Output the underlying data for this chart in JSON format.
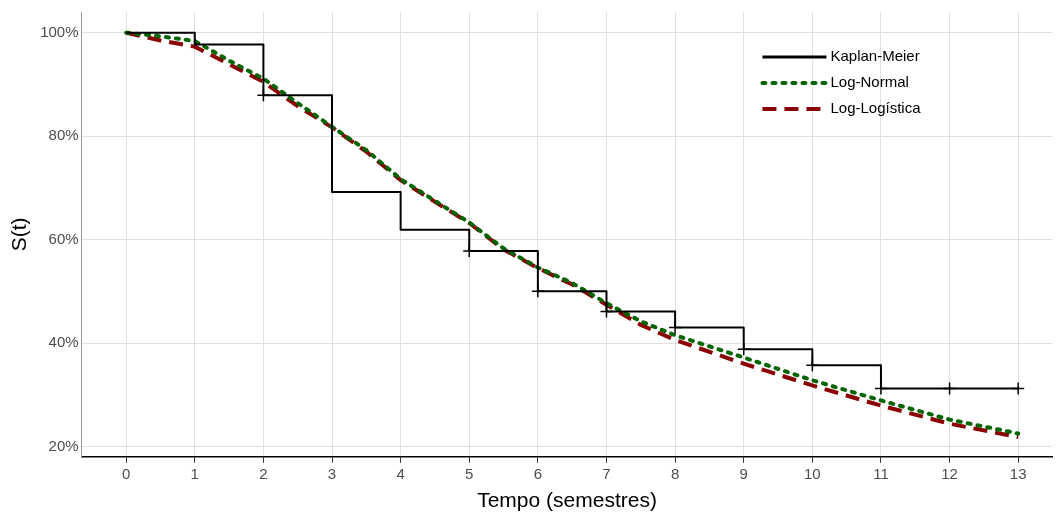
{
  "chart_data": {
    "type": "line",
    "xlabel": "Tempo (semestres)",
    "ylabel": "S(t)",
    "xlim": [
      -0.65,
      13.5
    ],
    "xticks": [
      0,
      1,
      2,
      3,
      4,
      5,
      6,
      7,
      8,
      9,
      10,
      11,
      12,
      13
    ],
    "ylim": [
      18,
      104
    ],
    "yticks": [
      {
        "value": 20,
        "label": "20%"
      },
      {
        "value": 40,
        "label": "40%"
      },
      {
        "value": 60,
        "label": "60%"
      },
      {
        "value": 80,
        "label": "80%"
      },
      {
        "value": 100,
        "label": "100%"
      }
    ],
    "grid": true,
    "legend": "top right",
    "series": [
      {
        "name": "Kaplan-Meier",
        "type": "step",
        "color": "#000000",
        "line_style": "solid",
        "x": [
          0,
          1,
          2,
          3,
          4,
          5,
          6,
          7,
          8,
          9,
          10,
          11,
          12,
          13
        ],
        "values": [
          100,
          97.7,
          87.9,
          69.2,
          61.9,
          57.8,
          50,
          46.1,
          43,
          38.8,
          35.7,
          31.2,
          31.2,
          31.2
        ]
      },
      {
        "name": "Log-Normal",
        "type": "line",
        "color": "#006400",
        "line_style": "dotted",
        "x": [
          0,
          0.5,
          1,
          1.5,
          2,
          2.5,
          3,
          3.5,
          4,
          4.5,
          5,
          5.5,
          6,
          6.5,
          7,
          7.5,
          8,
          9,
          10,
          11,
          12,
          13
        ],
        "values": [
          100,
          99.3,
          98.4,
          94.6,
          91.1,
          86.4,
          81.8,
          77.3,
          71.7,
          67.5,
          63.3,
          58.3,
          54.6,
          51.6,
          47.7,
          44.2,
          41.5,
          37.2,
          32.8,
          28.9,
          25.2,
          22.5
        ]
      },
      {
        "name": "Log-Logística",
        "type": "line",
        "color": "#8b0000",
        "line_style": "dashed",
        "x": [
          0,
          0.5,
          1,
          1.5,
          2,
          2.5,
          3,
          3.5,
          4,
          4.5,
          5,
          5.5,
          6,
          6.5,
          7,
          7.5,
          8,
          9,
          10,
          11,
          12,
          13
        ],
        "values": [
          100,
          98.5,
          97.3,
          93.9,
          90.5,
          85.8,
          81.7,
          77.0,
          71.5,
          67.3,
          63.2,
          58.1,
          54.5,
          51.3,
          47.4,
          43.5,
          40.6,
          36.0,
          31.8,
          27.9,
          24.4,
          21.8
        ]
      },
      {
        "type": "scatter",
        "color": "#000000",
        "marker": "cross",
        "x": [
          2,
          5,
          6,
          7,
          8,
          9,
          10,
          11,
          12,
          13
        ],
        "values": [
          87.9,
          57.8,
          50,
          46.1,
          43,
          38.8,
          35.7,
          31.2,
          31.2,
          31.2
        ]
      }
    ]
  }
}
